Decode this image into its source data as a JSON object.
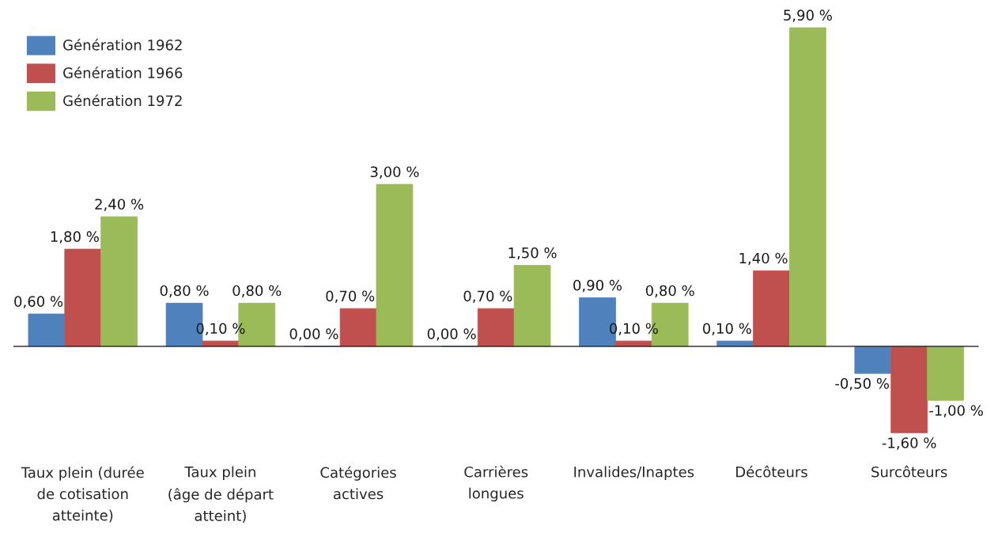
{
  "chart_data": {
    "type": "bar",
    "categories": [
      "Taux plein (durée\nde cotisation\natteinte)",
      "Taux plein\n(âge de départ\natteint)",
      "Catégories\nactives",
      "Carrières\nlongues",
      "Invalides/Inaptes",
      "Décôteurs",
      "Surcôteurs"
    ],
    "series": [
      {
        "name": "Génération 1962",
        "color": "#4f81bd",
        "values": [
          0.6,
          0.8,
          0.0,
          0.0,
          0.9,
          0.1,
          -0.5
        ],
        "value_labels": [
          "0,60 %",
          "0,80 %",
          "0,00 %",
          "0,00 %",
          "0,90 %",
          "0,10 %",
          "-0,50 %"
        ]
      },
      {
        "name": "Génération 1966",
        "color": "#c0504d",
        "values": [
          1.8,
          0.1,
          0.7,
          0.7,
          0.1,
          1.4,
          -1.6
        ],
        "value_labels": [
          "1,80 %",
          "0,10 %",
          "0,70 %",
          "0,70 %",
          "0,10 %",
          "1,40 %",
          "-1,60 %"
        ]
      },
      {
        "name": "Génération 1972",
        "color": "#9bbb59",
        "values": [
          2.4,
          0.8,
          3.0,
          1.5,
          0.8,
          5.9,
          -1.0
        ],
        "value_labels": [
          "2,40 %",
          "0,80 %",
          "3,00 %",
          "1,50 %",
          "0,80 %",
          "5,90 %",
          "-1,00 %"
        ]
      }
    ],
    "legend": "top left",
    "tick_labels": "x"
  }
}
